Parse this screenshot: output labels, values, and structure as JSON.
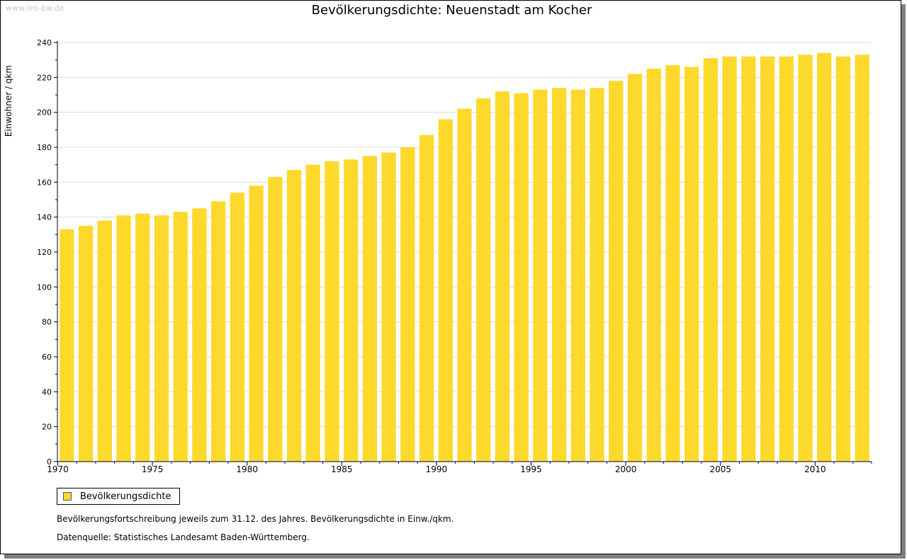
{
  "page": {
    "watermark": "www.leo-bw.de",
    "note_1": "Bevölkerungsfortschreibung jeweils zum 31.12. des Jahres. Bevölkerungsdichte in Einw./qkm.",
    "note_2": "Datenquelle: Statistisches Landesamt Baden-Württemberg."
  },
  "colors": {
    "bar": "#fdd92c",
    "grid": "#dcdcdc",
    "axis": "#000000"
  },
  "chart_data": {
    "type": "bar",
    "title": "Bevölkerungsdichte: Neuenstadt am Kocher",
    "xlabel": "",
    "ylabel": "Einwohner / qkm",
    "ylim": [
      0,
      240
    ],
    "yticks": [
      0,
      20,
      40,
      60,
      80,
      100,
      120,
      140,
      160,
      180,
      200,
      220,
      240
    ],
    "xtick_labels": [
      1970,
      1975,
      1980,
      1985,
      1990,
      1995,
      2000,
      2005,
      2010
    ],
    "legend": [
      "Bevölkerungsdichte"
    ],
    "legend_position": "bottom-left",
    "grid": true,
    "categories": [
      1970,
      1971,
      1972,
      1973,
      1974,
      1975,
      1976,
      1977,
      1978,
      1979,
      1980,
      1981,
      1982,
      1983,
      1984,
      1985,
      1986,
      1987,
      1988,
      1989,
      1990,
      1991,
      1992,
      1993,
      1994,
      1995,
      1996,
      1997,
      1998,
      1999,
      2000,
      2001,
      2002,
      2003,
      2004,
      2005,
      2006,
      2007,
      2008,
      2009,
      2010,
      2011,
      2012
    ],
    "series": [
      {
        "name": "Bevölkerungsdichte",
        "values": [
          133,
          135,
          138,
          141,
          142,
          141,
          143,
          145,
          149,
          154,
          158,
          163,
          167,
          170,
          172,
          173,
          175,
          177,
          180,
          187,
          196,
          202,
          208,
          212,
          211,
          213,
          214,
          213,
          214,
          218,
          222,
          225,
          227,
          226,
          231,
          232,
          232,
          232,
          232,
          233,
          234,
          232,
          233
        ]
      }
    ]
  }
}
